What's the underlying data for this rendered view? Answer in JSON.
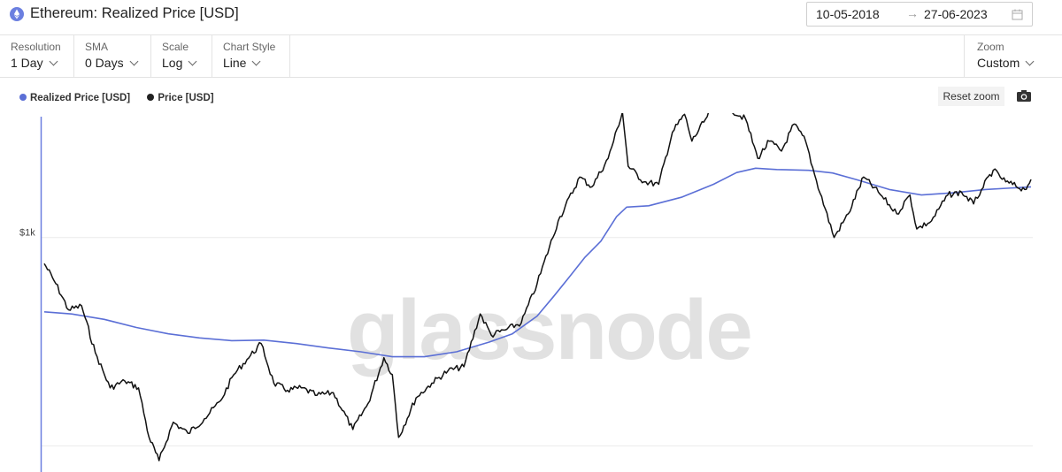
{
  "header": {
    "title": "Ethereum: Realized Price [USD]",
    "icon": "ethereum-icon",
    "date_from": "10-05-2018",
    "date_arrow": "→",
    "date_to": "27-06-2023"
  },
  "toolbar": {
    "resolution_label": "Resolution",
    "resolution_value": "1 Day",
    "sma_label": "SMA",
    "sma_value": "0 Days",
    "scale_label": "Scale",
    "scale_value": "Log",
    "chart_style_label": "Chart Style",
    "chart_style_value": "Line",
    "zoom_label": "Zoom",
    "zoom_value": "Custom"
  },
  "controls": {
    "reset_zoom": "Reset zoom"
  },
  "watermark": "glassnode",
  "colors": {
    "realized": "#5b6fd6",
    "price": "#111111",
    "axis": "#6b7fe0",
    "grid": "#ececec"
  },
  "chart_data": {
    "type": "line",
    "title": "Ethereum: Realized Price [USD]",
    "yscale": "log",
    "ylim": [
      75,
      3800
    ],
    "ytick_labels": [
      {
        "value": 1000,
        "label": "$1k"
      },
      {
        "value": 100,
        "label": ""
      }
    ],
    "x_range": [
      "2018-05-10",
      "2023-06-27"
    ],
    "legend_placement": "top-left",
    "series": [
      {
        "name": "Realized Price [USD]",
        "color": "#5b6fd6",
        "x": [
          "2018-05-10",
          "2018-07-01",
          "2018-09-01",
          "2018-11-01",
          "2019-01-01",
          "2019-03-01",
          "2019-05-01",
          "2019-07-01",
          "2019-09-01",
          "2019-11-01",
          "2020-01-01",
          "2020-03-01",
          "2020-05-01",
          "2020-07-01",
          "2020-09-01",
          "2020-10-15",
          "2020-12-01",
          "2021-01-01",
          "2021-02-01",
          "2021-03-01",
          "2021-04-01",
          "2021-05-01",
          "2021-05-20",
          "2021-07-01",
          "2021-09-01",
          "2021-11-01",
          "2021-12-15",
          "2022-01-20",
          "2022-03-01",
          "2022-05-01",
          "2022-06-15",
          "2022-08-01",
          "2022-10-01",
          "2022-12-01",
          "2023-02-01",
          "2023-04-01",
          "2023-06-27"
        ],
        "values": [
          440,
          430,
          405,
          370,
          345,
          330,
          320,
          322,
          310,
          295,
          283,
          268,
          268,
          283,
          315,
          345,
          420,
          520,
          650,
          800,
          960,
          1260,
          1400,
          1420,
          1560,
          1800,
          2050,
          2150,
          2120,
          2100,
          2040,
          1890,
          1700,
          1600,
          1640,
          1700,
          1750
        ]
      },
      {
        "name": "Price [USD]",
        "color": "#111111",
        "x": [
          "2018-05-10",
          "2018-06-01",
          "2018-06-25",
          "2018-07-20",
          "2018-08-15",
          "2018-09-12",
          "2018-10-10",
          "2018-11-05",
          "2018-11-25",
          "2018-12-14",
          "2019-01-10",
          "2019-02-07",
          "2019-03-10",
          "2019-04-10",
          "2019-05-05",
          "2019-05-30",
          "2019-06-26",
          "2019-07-20",
          "2019-08-15",
          "2019-09-10",
          "2019-10-10",
          "2019-11-10",
          "2019-12-17",
          "2020-01-15",
          "2020-02-14",
          "2020-03-01",
          "2020-03-13",
          "2020-04-15",
          "2020-05-15",
          "2020-06-15",
          "2020-07-15",
          "2020-08-15",
          "2020-09-05",
          "2020-10-01",
          "2020-11-01",
          "2020-12-01",
          "2021-01-10",
          "2021-02-20",
          "2021-03-15",
          "2021-04-15",
          "2021-05-12",
          "2021-05-23",
          "2021-06-22",
          "2021-07-20",
          "2021-08-15",
          "2021-09-07",
          "2021-09-21",
          "2021-10-20",
          "2021-11-10",
          "2021-12-04",
          "2022-01-01",
          "2022-01-24",
          "2022-02-15",
          "2022-03-10",
          "2022-04-03",
          "2022-04-25",
          "2022-05-12",
          "2022-06-18",
          "2022-07-15",
          "2022-08-13",
          "2022-09-10",
          "2022-10-15",
          "2022-11-09",
          "2022-11-22",
          "2022-12-20",
          "2023-01-20",
          "2023-02-15",
          "2023-03-10",
          "2023-03-25",
          "2023-04-16",
          "2023-05-10",
          "2023-06-15",
          "2023-06-27"
        ],
        "values": [
          750,
          600,
          450,
          470,
          280,
          190,
          205,
          190,
          110,
          85,
          130,
          115,
          135,
          165,
          220,
          260,
          310,
          200,
          185,
          190,
          175,
          180,
          120,
          160,
          265,
          220,
          110,
          170,
          200,
          230,
          240,
          430,
          340,
          360,
          390,
          600,
          1200,
          1950,
          1750,
          2400,
          4000,
          2200,
          1850,
          1800,
          3200,
          3900,
          2900,
          3800,
          4700,
          4100,
          3700,
          2400,
          2900,
          2600,
          3500,
          2900,
          2000,
          1000,
          1300,
          1950,
          1650,
          1300,
          1600,
          1100,
          1200,
          1600,
          1650,
          1450,
          1700,
          2100,
          1850,
          1700,
          1900
        ]
      }
    ]
  }
}
